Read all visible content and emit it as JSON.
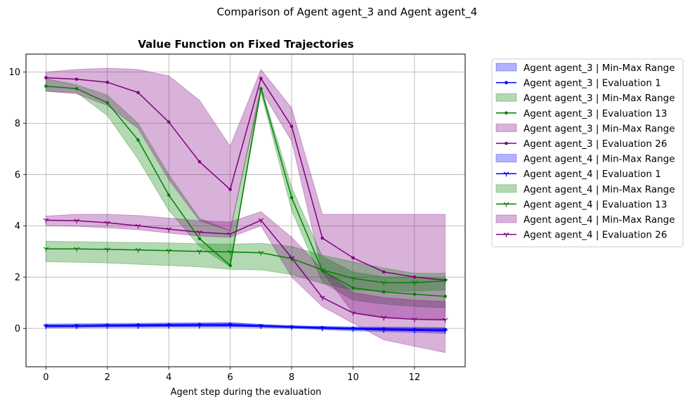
{
  "chart_data": {
    "type": "line",
    "suptitle": "Comparison of Agent agent_3 and Agent agent_4",
    "title": "Value Function on Fixed Trajectories",
    "xlabel": "Agent step during the evaluation",
    "ylabel": "",
    "xlim": [
      -0.65,
      13.65
    ],
    "ylim": [
      -1.5,
      10.7
    ],
    "xticks": [
      "0",
      "2",
      "4",
      "6",
      "8",
      "10",
      "12"
    ],
    "xtick_values": [
      0,
      2,
      4,
      6,
      8,
      10,
      12
    ],
    "yticks": [
      "0",
      "2",
      "4",
      "6",
      "8",
      "10"
    ],
    "ytick_values": [
      0,
      2,
      4,
      6,
      8,
      10
    ],
    "grid": true,
    "legend_position": "outside-right",
    "x": [
      0,
      1,
      2,
      3,
      4,
      5,
      6,
      7,
      8,
      9,
      10,
      11,
      12,
      13
    ],
    "series": [
      {
        "agent": "agent_3",
        "evaluation": 1,
        "color": "#0000ff",
        "marker": "dot",
        "range_label": "Agent agent_3 | Min-Max Range",
        "line_label": "Agent agent_3 | Evaluation 1",
        "values": [
          0.1,
          0.1,
          0.12,
          0.13,
          0.14,
          0.15,
          0.15,
          0.1,
          0.06,
          0.03,
          0.0,
          -0.02,
          -0.04,
          -0.05
        ],
        "min": [
          0.05,
          0.06,
          0.07,
          0.08,
          0.08,
          0.09,
          0.09,
          0.06,
          0.02,
          -0.02,
          -0.05,
          -0.08,
          -0.1,
          -0.12
        ],
        "max": [
          0.17,
          0.18,
          0.19,
          0.2,
          0.21,
          0.22,
          0.23,
          0.15,
          0.1,
          0.08,
          0.06,
          0.05,
          0.04,
          0.03
        ]
      },
      {
        "agent": "agent_3",
        "evaluation": 13,
        "color": "#008000",
        "marker": "dot",
        "range_label": "Agent agent_3 | Min-Max Range",
        "line_label": "Agent agent_3 | Evaluation 13",
        "values": [
          9.45,
          9.35,
          8.8,
          7.35,
          5.2,
          3.5,
          2.45,
          9.35,
          5.1,
          2.25,
          1.58,
          1.42,
          1.33,
          1.25
        ],
        "min": [
          9.25,
          9.2,
          8.3,
          6.6,
          4.6,
          3.2,
          2.4,
          9.2,
          4.6,
          1.8,
          1.1,
          0.95,
          0.85,
          0.8
        ],
        "max": [
          9.75,
          9.5,
          9.1,
          8.0,
          6.0,
          4.3,
          3.8,
          9.45,
          5.5,
          2.8,
          2.2,
          2.0,
          2.0,
          1.95
        ]
      },
      {
        "agent": "agent_3",
        "evaluation": 26,
        "color": "#800080",
        "marker": "dot",
        "range_label": "Agent agent_3 | Min-Max Range",
        "line_label": "Agent agent_3 | Evaluation 26",
        "values": [
          9.78,
          9.72,
          9.6,
          9.2,
          8.05,
          6.5,
          5.42,
          9.75,
          7.88,
          3.52,
          2.75,
          2.2,
          2.0,
          1.88
        ],
        "min": [
          9.25,
          9.15,
          8.7,
          7.8,
          5.8,
          4.2,
          3.8,
          9.3,
          7.3,
          2.2,
          0.6,
          0.45,
          0.4,
          0.35
        ],
        "max": [
          10.0,
          10.1,
          10.15,
          10.1,
          9.85,
          8.9,
          7.1,
          10.1,
          8.6,
          4.45,
          4.45,
          4.45,
          4.45,
          4.45
        ]
      },
      {
        "agent": "agent_4",
        "evaluation": 1,
        "color": "#0000ff",
        "marker": "tri",
        "range_label": "Agent agent_4 | Min-Max Range",
        "line_label": "Agent agent_4 | Evaluation 1",
        "values": [
          0.08,
          0.08,
          0.09,
          0.09,
          0.1,
          0.1,
          0.1,
          0.08,
          0.04,
          0.0,
          -0.03,
          -0.06,
          -0.08,
          -0.1
        ],
        "min": [
          0.02,
          0.02,
          0.03,
          0.03,
          0.04,
          0.04,
          0.04,
          0.03,
          0.0,
          -0.05,
          -0.1,
          -0.13,
          -0.16,
          -0.2
        ],
        "max": [
          0.14,
          0.15,
          0.16,
          0.17,
          0.18,
          0.19,
          0.2,
          0.15,
          0.1,
          0.06,
          0.03,
          0.02,
          0.01,
          0.0
        ]
      },
      {
        "agent": "agent_4",
        "evaluation": 13,
        "color": "#008000",
        "marker": "tri",
        "range_label": "Agent agent_4 | Min-Max Range",
        "line_label": "Agent agent_4 | Evaluation 13",
        "values": [
          3.1,
          3.1,
          3.08,
          3.06,
          3.03,
          3.0,
          2.98,
          2.95,
          2.72,
          2.28,
          1.95,
          1.78,
          1.78,
          1.85
        ],
        "min": [
          2.6,
          2.58,
          2.55,
          2.5,
          2.45,
          2.4,
          2.3,
          2.28,
          2.1,
          1.75,
          1.5,
          1.45,
          1.45,
          1.5
        ],
        "max": [
          3.4,
          3.38,
          3.36,
          3.35,
          3.33,
          3.3,
          3.28,
          3.32,
          3.2,
          2.85,
          2.6,
          2.35,
          2.15,
          2.15
        ]
      },
      {
        "agent": "agent_4",
        "evaluation": 26,
        "color": "#800080",
        "marker": "tri",
        "range_label": "Agent agent_4 | Min-Max Range",
        "line_label": "Agent agent_4 | Evaluation 26",
        "values": [
          4.22,
          4.2,
          4.12,
          4.0,
          3.87,
          3.75,
          3.68,
          4.22,
          2.75,
          1.2,
          0.6,
          0.42,
          0.35,
          0.33
        ],
        "min": [
          4.0,
          3.98,
          3.92,
          3.85,
          3.72,
          3.6,
          3.55,
          4.0,
          2.0,
          0.85,
          0.2,
          -0.45,
          -0.7,
          -0.95
        ],
        "max": [
          4.38,
          4.45,
          4.45,
          4.4,
          4.3,
          4.2,
          4.15,
          4.55,
          3.55,
          2.3,
          1.4,
          1.2,
          1.1,
          1.05
        ]
      }
    ]
  }
}
